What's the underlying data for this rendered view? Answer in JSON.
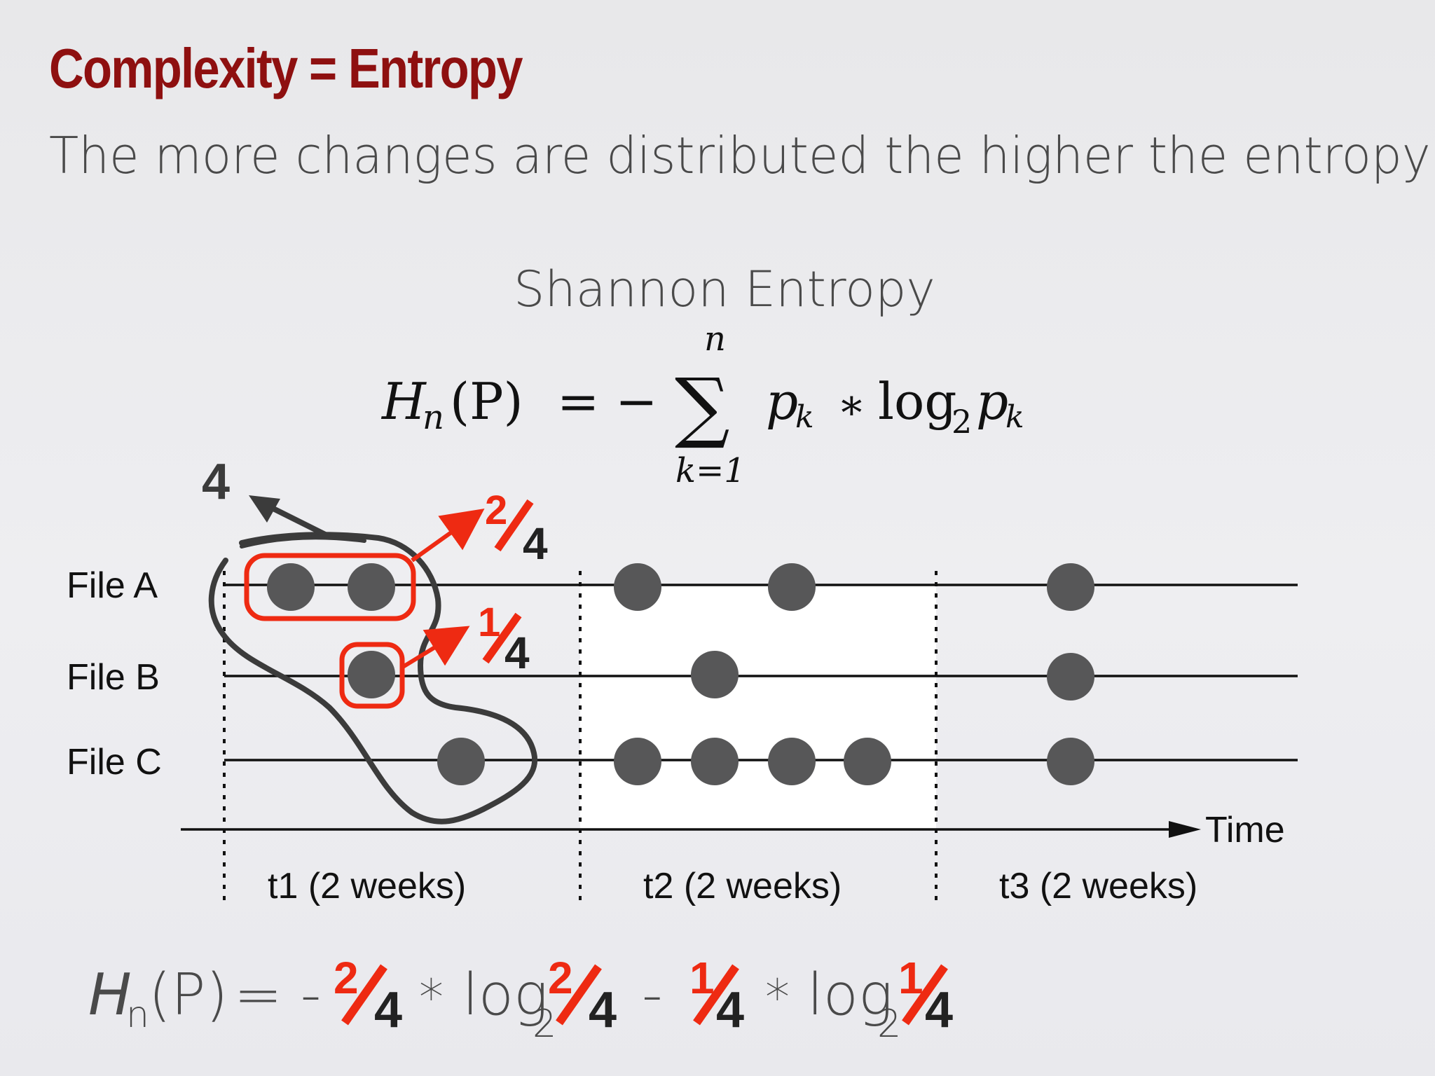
{
  "slide": {
    "title": "Complexity = Entropy",
    "subtitle": "The more changes are distributed the higher the entropy",
    "heading": "Shannon Entropy"
  },
  "formula": {
    "lhs_H": "H",
    "lhs_sub": "n",
    "lhs_args": "(P)",
    "equals_minus": "= −",
    "sigma": "∑",
    "upper": "n",
    "lower": "k=1",
    "p": "p",
    "k": "k",
    "times": "∗",
    "log": "log",
    "log_base": "2"
  },
  "diagram": {
    "files": [
      "File A",
      "File B",
      "File C"
    ],
    "axis_label": "Time",
    "periods": [
      "t1 (2 weeks)",
      "t2 (2 weeks)",
      "t3 (2 weeks)"
    ],
    "total_label": "4",
    "fraction_a": {
      "num": "2",
      "den": "4"
    },
    "fraction_b": {
      "num": "1",
      "den": "4"
    },
    "colors": {
      "highlight": "#ee2a12",
      "dot": "#575758",
      "annotation": "#3b3b3b",
      "title": "#8e1010"
    },
    "changes": {
      "File A": {
        "t1": 2,
        "t2": 2,
        "t3": 1
      },
      "File B": {
        "t1": 1,
        "t2": 1,
        "t3": 1
      },
      "File C": {
        "t1": 1,
        "t2": 4,
        "t3": 1
      }
    }
  },
  "bottom_formula": {
    "H": "H",
    "sub": "n",
    "args": "(P)",
    "eq": "= -",
    "term1": {
      "num": "2",
      "den": "4"
    },
    "times": "*",
    "log": "log",
    "base": "2",
    "minus": "-",
    "term2": {
      "num": "1",
      "den": "4"
    }
  }
}
